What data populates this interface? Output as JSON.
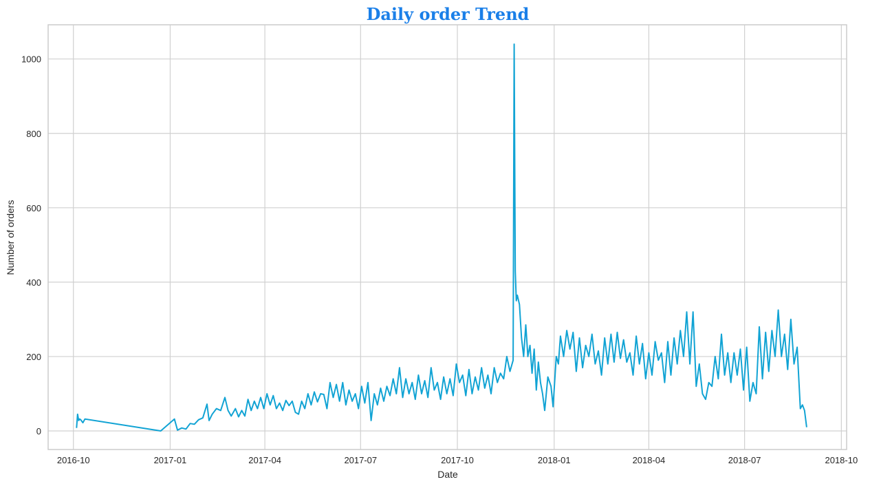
{
  "chart_data": {
    "type": "line",
    "title": "Daily order Trend",
    "xlabel": "Date",
    "ylabel": "Number of orders",
    "x_ticks": [
      "2016-10",
      "2017-01",
      "2017-04",
      "2017-07",
      "2017-10",
      "2018-01",
      "2018-04",
      "2018-07",
      "2018-10"
    ],
    "y_ticks": [
      0,
      200,
      400,
      600,
      800,
      1000
    ],
    "xlim": [
      "2016-09-07",
      "2018-10-06"
    ],
    "ylim": [
      -50,
      1092
    ],
    "grid": true,
    "legend": "none",
    "series": [
      {
        "color": "#11a3d4",
        "points": [
          [
            "2016-10-04",
            8
          ],
          [
            "2016-10-05",
            45
          ],
          [
            "2016-10-06",
            28
          ],
          [
            "2016-10-07",
            32
          ],
          [
            "2016-10-08",
            30
          ],
          [
            "2016-10-10",
            22
          ],
          [
            "2016-10-12",
            32
          ],
          [
            "2016-12-23",
            0
          ],
          [
            "2017-01-05",
            32
          ],
          [
            "2017-01-08",
            2
          ],
          [
            "2017-01-12",
            8
          ],
          [
            "2017-01-16",
            5
          ],
          [
            "2017-01-20",
            20
          ],
          [
            "2017-01-24",
            18
          ],
          [
            "2017-01-28",
            30
          ],
          [
            "2017-02-01",
            35
          ],
          [
            "2017-02-05",
            72
          ],
          [
            "2017-02-07",
            28
          ],
          [
            "2017-02-10",
            45
          ],
          [
            "2017-02-14",
            60
          ],
          [
            "2017-02-18",
            55
          ],
          [
            "2017-02-22",
            90
          ],
          [
            "2017-02-25",
            55
          ],
          [
            "2017-02-28",
            40
          ],
          [
            "2017-03-04",
            60
          ],
          [
            "2017-03-07",
            38
          ],
          [
            "2017-03-10",
            55
          ],
          [
            "2017-03-13",
            40
          ],
          [
            "2017-03-16",
            85
          ],
          [
            "2017-03-19",
            55
          ],
          [
            "2017-03-22",
            80
          ],
          [
            "2017-03-25",
            60
          ],
          [
            "2017-03-28",
            90
          ],
          [
            "2017-03-31",
            60
          ],
          [
            "2017-04-03",
            100
          ],
          [
            "2017-04-06",
            70
          ],
          [
            "2017-04-09",
            95
          ],
          [
            "2017-04-12",
            60
          ],
          [
            "2017-04-15",
            75
          ],
          [
            "2017-04-18",
            55
          ],
          [
            "2017-04-21",
            82
          ],
          [
            "2017-04-24",
            68
          ],
          [
            "2017-04-27",
            80
          ],
          [
            "2017-04-30",
            50
          ],
          [
            "2017-05-03",
            45
          ],
          [
            "2017-05-06",
            80
          ],
          [
            "2017-05-09",
            60
          ],
          [
            "2017-05-12",
            100
          ],
          [
            "2017-05-15",
            70
          ],
          [
            "2017-05-18",
            105
          ],
          [
            "2017-05-21",
            78
          ],
          [
            "2017-05-24",
            100
          ],
          [
            "2017-05-27",
            98
          ],
          [
            "2017-05-30",
            60
          ],
          [
            "2017-06-02",
            130
          ],
          [
            "2017-06-05",
            90
          ],
          [
            "2017-06-08",
            125
          ],
          [
            "2017-06-11",
            80
          ],
          [
            "2017-06-14",
            130
          ],
          [
            "2017-06-17",
            70
          ],
          [
            "2017-06-20",
            110
          ],
          [
            "2017-06-23",
            80
          ],
          [
            "2017-06-26",
            100
          ],
          [
            "2017-06-29",
            60
          ],
          [
            "2017-07-02",
            120
          ],
          [
            "2017-07-05",
            75
          ],
          [
            "2017-07-08",
            130
          ],
          [
            "2017-07-11",
            28
          ],
          [
            "2017-07-14",
            100
          ],
          [
            "2017-07-17",
            70
          ],
          [
            "2017-07-20",
            115
          ],
          [
            "2017-07-23",
            80
          ],
          [
            "2017-07-26",
            120
          ],
          [
            "2017-07-29",
            95
          ],
          [
            "2017-08-01",
            140
          ],
          [
            "2017-08-04",
            100
          ],
          [
            "2017-08-07",
            170
          ],
          [
            "2017-08-10",
            90
          ],
          [
            "2017-08-13",
            140
          ],
          [
            "2017-08-16",
            100
          ],
          [
            "2017-08-19",
            130
          ],
          [
            "2017-08-22",
            85
          ],
          [
            "2017-08-25",
            150
          ],
          [
            "2017-08-28",
            100
          ],
          [
            "2017-08-31",
            135
          ],
          [
            "2017-09-03",
            90
          ],
          [
            "2017-09-06",
            170
          ],
          [
            "2017-09-09",
            110
          ],
          [
            "2017-09-12",
            130
          ],
          [
            "2017-09-15",
            85
          ],
          [
            "2017-09-18",
            145
          ],
          [
            "2017-09-21",
            100
          ],
          [
            "2017-09-24",
            140
          ],
          [
            "2017-09-27",
            95
          ],
          [
            "2017-09-30",
            180
          ],
          [
            "2017-10-03",
            130
          ],
          [
            "2017-10-06",
            150
          ],
          [
            "2017-10-09",
            95
          ],
          [
            "2017-10-12",
            165
          ],
          [
            "2017-10-15",
            100
          ],
          [
            "2017-10-18",
            145
          ],
          [
            "2017-10-21",
            110
          ],
          [
            "2017-10-24",
            170
          ],
          [
            "2017-10-27",
            115
          ],
          [
            "2017-10-30",
            150
          ],
          [
            "2017-11-02",
            100
          ],
          [
            "2017-11-05",
            170
          ],
          [
            "2017-11-08",
            130
          ],
          [
            "2017-11-11",
            155
          ],
          [
            "2017-11-14",
            140
          ],
          [
            "2017-11-17",
            200
          ],
          [
            "2017-11-20",
            160
          ],
          [
            "2017-11-23",
            190
          ],
          [
            "2017-11-24",
            1040
          ],
          [
            "2017-11-25",
            430
          ],
          [
            "2017-11-26",
            350
          ],
          [
            "2017-11-27",
            365
          ],
          [
            "2017-11-29",
            340
          ],
          [
            "2017-12-01",
            250
          ],
          [
            "2017-12-03",
            200
          ],
          [
            "2017-12-05",
            285
          ],
          [
            "2017-12-07",
            200
          ],
          [
            "2017-12-09",
            230
          ],
          [
            "2017-12-11",
            155
          ],
          [
            "2017-12-13",
            220
          ],
          [
            "2017-12-15",
            110
          ],
          [
            "2017-12-17",
            185
          ],
          [
            "2017-12-19",
            130
          ],
          [
            "2017-12-21",
            100
          ],
          [
            "2017-12-23",
            55
          ],
          [
            "2017-12-26",
            145
          ],
          [
            "2017-12-29",
            120
          ],
          [
            "2017-12-31",
            65
          ],
          [
            "2018-01-03",
            200
          ],
          [
            "2018-01-05",
            180
          ],
          [
            "2018-01-07",
            255
          ],
          [
            "2018-01-10",
            200
          ],
          [
            "2018-01-13",
            270
          ],
          [
            "2018-01-16",
            220
          ],
          [
            "2018-01-19",
            265
          ],
          [
            "2018-01-22",
            160
          ],
          [
            "2018-01-25",
            250
          ],
          [
            "2018-01-28",
            170
          ],
          [
            "2018-01-31",
            230
          ],
          [
            "2018-02-03",
            200
          ],
          [
            "2018-02-06",
            260
          ],
          [
            "2018-02-09",
            180
          ],
          [
            "2018-02-12",
            215
          ],
          [
            "2018-02-15",
            150
          ],
          [
            "2018-02-18",
            250
          ],
          [
            "2018-02-21",
            180
          ],
          [
            "2018-02-24",
            260
          ],
          [
            "2018-02-27",
            185
          ],
          [
            "2018-03-02",
            265
          ],
          [
            "2018-03-05",
            195
          ],
          [
            "2018-03-08",
            245
          ],
          [
            "2018-03-11",
            185
          ],
          [
            "2018-03-14",
            210
          ],
          [
            "2018-03-17",
            150
          ],
          [
            "2018-03-20",
            255
          ],
          [
            "2018-03-23",
            180
          ],
          [
            "2018-03-26",
            235
          ],
          [
            "2018-03-29",
            140
          ],
          [
            "2018-04-01",
            210
          ],
          [
            "2018-04-04",
            150
          ],
          [
            "2018-04-07",
            240
          ],
          [
            "2018-04-10",
            190
          ],
          [
            "2018-04-13",
            210
          ],
          [
            "2018-04-16",
            130
          ],
          [
            "2018-04-19",
            240
          ],
          [
            "2018-04-22",
            150
          ],
          [
            "2018-04-25",
            250
          ],
          [
            "2018-04-28",
            180
          ],
          [
            "2018-05-01",
            270
          ],
          [
            "2018-05-04",
            200
          ],
          [
            "2018-05-07",
            320
          ],
          [
            "2018-05-10",
            180
          ],
          [
            "2018-05-13",
            320
          ],
          [
            "2018-05-16",
            120
          ],
          [
            "2018-05-19",
            180
          ],
          [
            "2018-05-22",
            100
          ],
          [
            "2018-05-25",
            85
          ],
          [
            "2018-05-28",
            130
          ],
          [
            "2018-05-31",
            120
          ],
          [
            "2018-06-03",
            200
          ],
          [
            "2018-06-06",
            140
          ],
          [
            "2018-06-09",
            260
          ],
          [
            "2018-06-12",
            150
          ],
          [
            "2018-06-15",
            210
          ],
          [
            "2018-06-18",
            130
          ],
          [
            "2018-06-21",
            210
          ],
          [
            "2018-06-24",
            150
          ],
          [
            "2018-06-27",
            220
          ],
          [
            "2018-06-30",
            110
          ],
          [
            "2018-07-03",
            225
          ],
          [
            "2018-07-06",
            80
          ],
          [
            "2018-07-09",
            130
          ],
          [
            "2018-07-12",
            100
          ],
          [
            "2018-07-15",
            280
          ],
          [
            "2018-07-18",
            140
          ],
          [
            "2018-07-21",
            265
          ],
          [
            "2018-07-24",
            160
          ],
          [
            "2018-07-27",
            270
          ],
          [
            "2018-07-30",
            200
          ],
          [
            "2018-08-02",
            325
          ],
          [
            "2018-08-05",
            200
          ],
          [
            "2018-08-08",
            260
          ],
          [
            "2018-08-11",
            165
          ],
          [
            "2018-08-14",
            300
          ],
          [
            "2018-08-17",
            180
          ],
          [
            "2018-08-20",
            225
          ],
          [
            "2018-08-23",
            60
          ],
          [
            "2018-08-25",
            70
          ],
          [
            "2018-08-27",
            55
          ],
          [
            "2018-08-29",
            10
          ]
        ]
      }
    ]
  }
}
